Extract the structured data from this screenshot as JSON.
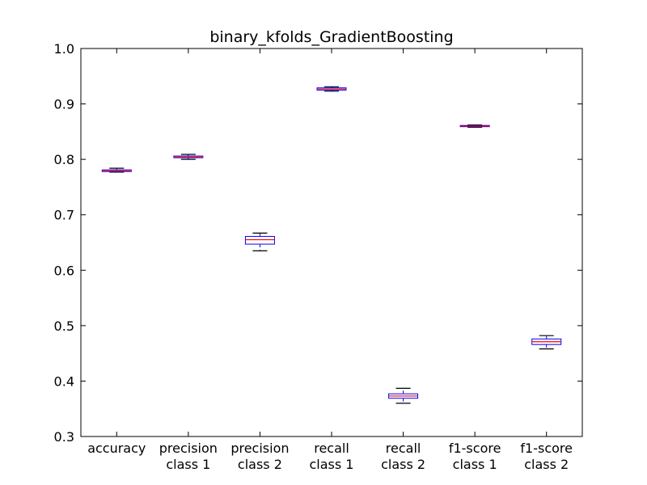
{
  "chart_data": {
    "type": "box",
    "title": "binary_kfolds_GradientBoosting",
    "xlabel": "",
    "ylabel": "",
    "ylim": [
      0.3,
      1.0
    ],
    "yticks": [
      "0.3",
      "0.4",
      "0.5",
      "0.6",
      "0.7",
      "0.8",
      "0.9",
      "1.0"
    ],
    "grid": false,
    "categories": [
      [
        "accuracy"
      ],
      [
        "precision",
        "class 1"
      ],
      [
        "precision",
        "class 2"
      ],
      [
        "recall",
        "class 1"
      ],
      [
        "recall",
        "class 2"
      ],
      [
        "f1-score",
        "class 1"
      ],
      [
        "f1-score",
        "class 2"
      ]
    ],
    "boxes": [
      {
        "whisker_low": 0.777,
        "q1": 0.778,
        "median": 0.78,
        "q3": 0.781,
        "whisker_high": 0.784
      },
      {
        "whisker_low": 0.8,
        "q1": 0.803,
        "median": 0.804,
        "q3": 0.806,
        "whisker_high": 0.809
      },
      {
        "whisker_low": 0.635,
        "q1": 0.647,
        "median": 0.655,
        "q3": 0.661,
        "whisker_high": 0.667
      },
      {
        "whisker_low": 0.923,
        "q1": 0.925,
        "median": 0.927,
        "q3": 0.929,
        "whisker_high": 0.931
      },
      {
        "whisker_low": 0.36,
        "q1": 0.369,
        "median": 0.373,
        "q3": 0.377,
        "whisker_high": 0.387
      },
      {
        "whisker_low": 0.858,
        "q1": 0.859,
        "median": 0.86,
        "q3": 0.861,
        "whisker_high": 0.862
      },
      {
        "whisker_low": 0.458,
        "q1": 0.466,
        "median": 0.471,
        "q3": 0.476,
        "whisker_high": 0.482
      }
    ],
    "colors": {
      "box": "#0000ff",
      "median": "#ff0000",
      "whisker": "#000000",
      "axes": "#000000"
    }
  }
}
